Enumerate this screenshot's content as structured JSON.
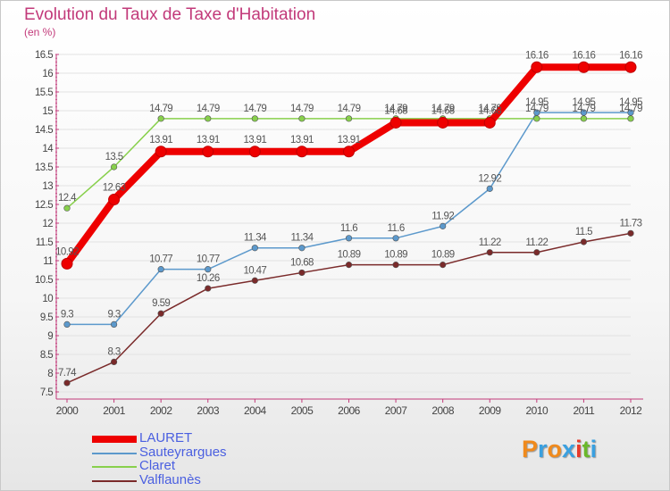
{
  "header": {
    "title": "Evolution du Taux de Taxe d'Habitation",
    "unit_note": "(en %)"
  },
  "brand": {
    "text": "Proxiti",
    "letter_colors": [
      "#f08a1c",
      "#3aa0e0",
      "#f08a1c",
      "#3aa0e0",
      "#e83a2a",
      "#6ab82a",
      "#3aa0e0"
    ]
  },
  "chart_data": {
    "type": "line",
    "x": [
      "2000",
      "2001",
      "2002",
      "2003",
      "2004",
      "2005",
      "2006",
      "2007",
      "2008",
      "2009",
      "2010",
      "2011",
      "2012"
    ],
    "ylim": [
      7.5,
      16.5
    ],
    "yticks": [
      "7.5",
      "8",
      "8.5",
      "9",
      "9.5",
      "10",
      "10.5",
      "11",
      "11.5",
      "12",
      "12.5",
      "13",
      "13.5",
      "14",
      "14.5",
      "15",
      "15.5",
      "16",
      "16.5"
    ],
    "grid": "horizontal",
    "legend_position": "bottom-left",
    "series": [
      {
        "name": "LAURET",
        "color": "#ee0000",
        "style": "bold",
        "values": [
          10.92,
          12.63,
          13.91,
          13.91,
          13.91,
          13.91,
          13.91,
          14.68,
          14.68,
          14.68,
          16.16,
          16.16,
          16.16
        ],
        "labels": [
          "10.92",
          "12.63",
          "13.91",
          "13.91",
          "13.91",
          "13.91",
          "13.91",
          "14.68",
          "14.68",
          "14.68",
          "16.16",
          "16.16",
          "16.16"
        ]
      },
      {
        "name": "Sauteyrargues",
        "color": "#5c99cc",
        "style": "normal",
        "values": [
          9.3,
          9.3,
          10.77,
          10.77,
          11.34,
          11.34,
          11.6,
          11.6,
          11.92,
          12.92,
          14.95,
          14.95,
          14.95
        ],
        "labels": [
          "9.3",
          "9.3",
          "10.77",
          "10.77",
          "11.34",
          "11.34",
          "11.6",
          "11.6",
          "11.92",
          "12.92",
          "14.95",
          "14.95",
          "14.95"
        ]
      },
      {
        "name": "Claret",
        "color": "#88d04c",
        "style": "normal",
        "values": [
          12.4,
          13.5,
          14.79,
          14.79,
          14.79,
          14.79,
          14.79,
          14.79,
          14.79,
          14.79,
          14.79,
          14.79,
          14.79
        ],
        "labels": [
          "12.4",
          "13.5",
          "14.79",
          "14.79",
          "14.79",
          "14.79",
          "14.79",
          "14.79",
          "14.79",
          "14.79",
          "14.79",
          "14.79",
          "14.79"
        ]
      },
      {
        "name": "Valflaunès",
        "color": "#7a2a2a",
        "style": "normal",
        "values": [
          7.74,
          8.3,
          9.59,
          10.26,
          10.47,
          10.68,
          10.89,
          10.89,
          10.89,
          11.22,
          11.22,
          11.5,
          11.73
        ],
        "labels": [
          "7.74",
          "8.3",
          "9.59",
          "10.26",
          "10.47",
          "10.68",
          "10.89",
          "10.89",
          "10.89",
          "11.22",
          "11.22",
          "11.5",
          "11.73"
        ]
      }
    ]
  }
}
